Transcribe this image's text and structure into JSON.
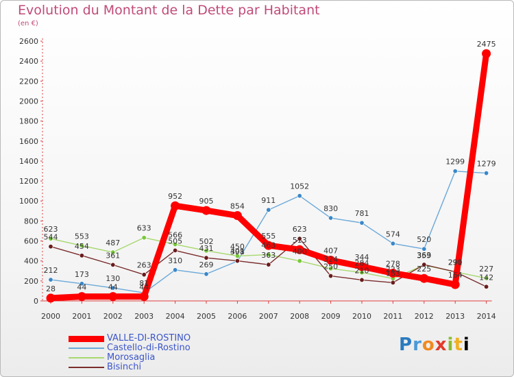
{
  "title": "Evolution du Montant de la Dette par Habitant",
  "subtitle": "(en €)",
  "logo": [
    "P",
    "r",
    "o",
    "x",
    "i",
    "t",
    "i"
  ],
  "chart_data": {
    "type": "line",
    "title": "Evolution du Montant de la Dette par Habitant",
    "subtitle": "(en €)",
    "xlabel": "",
    "ylabel": "",
    "x": [
      2000,
      2001,
      2002,
      2003,
      2004,
      2005,
      2006,
      2007,
      2008,
      2009,
      2010,
      2011,
      2012,
      2013,
      2014
    ],
    "ylim": [
      0,
      2600
    ],
    "yticks": [
      0,
      200,
      400,
      600,
      800,
      1000,
      1200,
      1400,
      1600,
      1800,
      2000,
      2200,
      2400,
      2600
    ],
    "grid": false,
    "legend_position": "bottom-left",
    "series": [
      {
        "name": "VALLE-DI-ROSTINO",
        "color": "#ff0000",
        "marker": "#ff0000",
        "width": "thick",
        "values": [
          28,
          44,
          44,
          44,
          952,
          905,
          854,
          555,
          513,
          407,
          344,
          278,
          225,
          164,
          2475
        ]
      },
      {
        "name": "Castello-di-Rostino",
        "color": "#6aa8d8",
        "marker": "#3a87c8",
        "width": "thin",
        "values": [
          212,
          173,
          130,
          81,
          310,
          269,
          398,
          911,
          1052,
          830,
          781,
          574,
          520,
          1299,
          1279
        ]
      },
      {
        "name": "Morosaglia",
        "color": "#a6d86e",
        "marker": "#78c83a",
        "width": "thin",
        "values": [
          623,
          553,
          487,
          633,
          566,
          502,
          450,
          463,
          400,
          324,
          284,
          223,
          359,
          290,
          227
        ]
      },
      {
        "name": "Bisinchi",
        "color": "#7a2c2c",
        "marker": "#6a1c1c",
        "width": "thin",
        "values": [
          544,
          454,
          361,
          263,
          505,
          431,
          401,
          363,
          623,
          250,
          210,
          183,
          363,
          291,
          142
        ]
      }
    ]
  }
}
